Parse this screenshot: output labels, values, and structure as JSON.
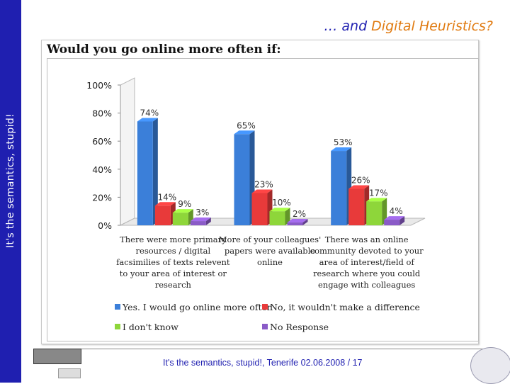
{
  "slide": {
    "sidebar_text": "It's the semantics, stupid!",
    "title_prefix": "… and ",
    "title_accent": "Digital Heuristics?",
    "footer": "It's the semantics, stupid!, Tenerife 02.06.2008 / 17"
  },
  "colors": {
    "sidebar": "#1f1fb0",
    "title": "#1f1fb0",
    "accent": "#e07a10"
  },
  "chart_data": {
    "type": "bar",
    "title": "Would you go online more often if:",
    "categories": [
      [
        "There were more primary",
        "resources / digital",
        "facsimilies of texts relevent",
        "to your area of interest or",
        "research"
      ],
      [
        "More of your colleagues'",
        "papers were available",
        "online"
      ],
      [
        "There was an online",
        "community devoted to your",
        "area of interest/field of",
        "research where you could",
        "engage with colleagues"
      ]
    ],
    "series": [
      {
        "name": "Yes. I would go online more often",
        "values": [
          74,
          65,
          53
        ],
        "color": "#3b7fd9"
      },
      {
        "name": "No, it wouldn't make a difference",
        "values": [
          14,
          23,
          26
        ],
        "color": "#e83a3a"
      },
      {
        "name": "I don't know",
        "values": [
          9,
          10,
          17
        ],
        "color": "#8ed63a"
      },
      {
        "name": "No Response",
        "values": [
          3,
          2,
          4
        ],
        "color": "#8a5bc7"
      }
    ],
    "ylim": [
      0,
      100
    ],
    "yticks": [
      "0%",
      "20%",
      "40%",
      "60%",
      "80%",
      "100%"
    ],
    "value_suffix": "%",
    "grid": false,
    "legend_position": "bottom"
  }
}
